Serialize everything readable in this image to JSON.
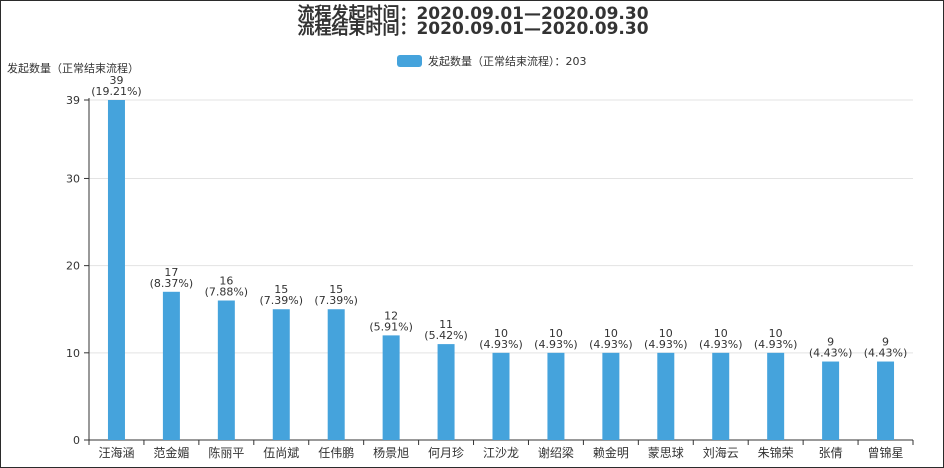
{
  "chart_data": {
    "type": "bar",
    "title_line1": "流程发起时间：2020.09.01—2020.09.30",
    "title_line2": "流程结束时间：2020.09.01—2020.09.30",
    "ylabel": "发起数量（正常结束流程）",
    "legend": {
      "name": "发起数量（正常结束流程）",
      "separator": "：",
      "total": "203",
      "placement": "top-center"
    },
    "categories": [
      "汪海涵",
      "范金媚",
      "陈丽平",
      "伍尚斌",
      "任伟鹏",
      "杨景旭",
      "何月珍",
      "江沙龙",
      "谢绍梁",
      "赖金明",
      "蒙思球",
      "刘海云",
      "朱锦荣",
      "张倩",
      "曾锦星"
    ],
    "values": [
      39,
      17,
      16,
      15,
      15,
      12,
      11,
      10,
      10,
      10,
      10,
      10,
      10,
      9,
      9
    ],
    "percent_labels": [
      "(19.21%)",
      "(8.37%)",
      "(7.88%)",
      "(7.39%)",
      "(7.39%)",
      "(5.91%)",
      "(5.42%)",
      "(4.93%)",
      "(4.93%)",
      "(4.93%)",
      "(4.93%)",
      "(4.93%)",
      "(4.93%)",
      "(4.43%)",
      "(4.43%)"
    ],
    "yticks": [
      0,
      10,
      20,
      30,
      39
    ],
    "ylim": [
      0,
      39
    ],
    "grid": true,
    "bar_color": "#45a3dc"
  }
}
